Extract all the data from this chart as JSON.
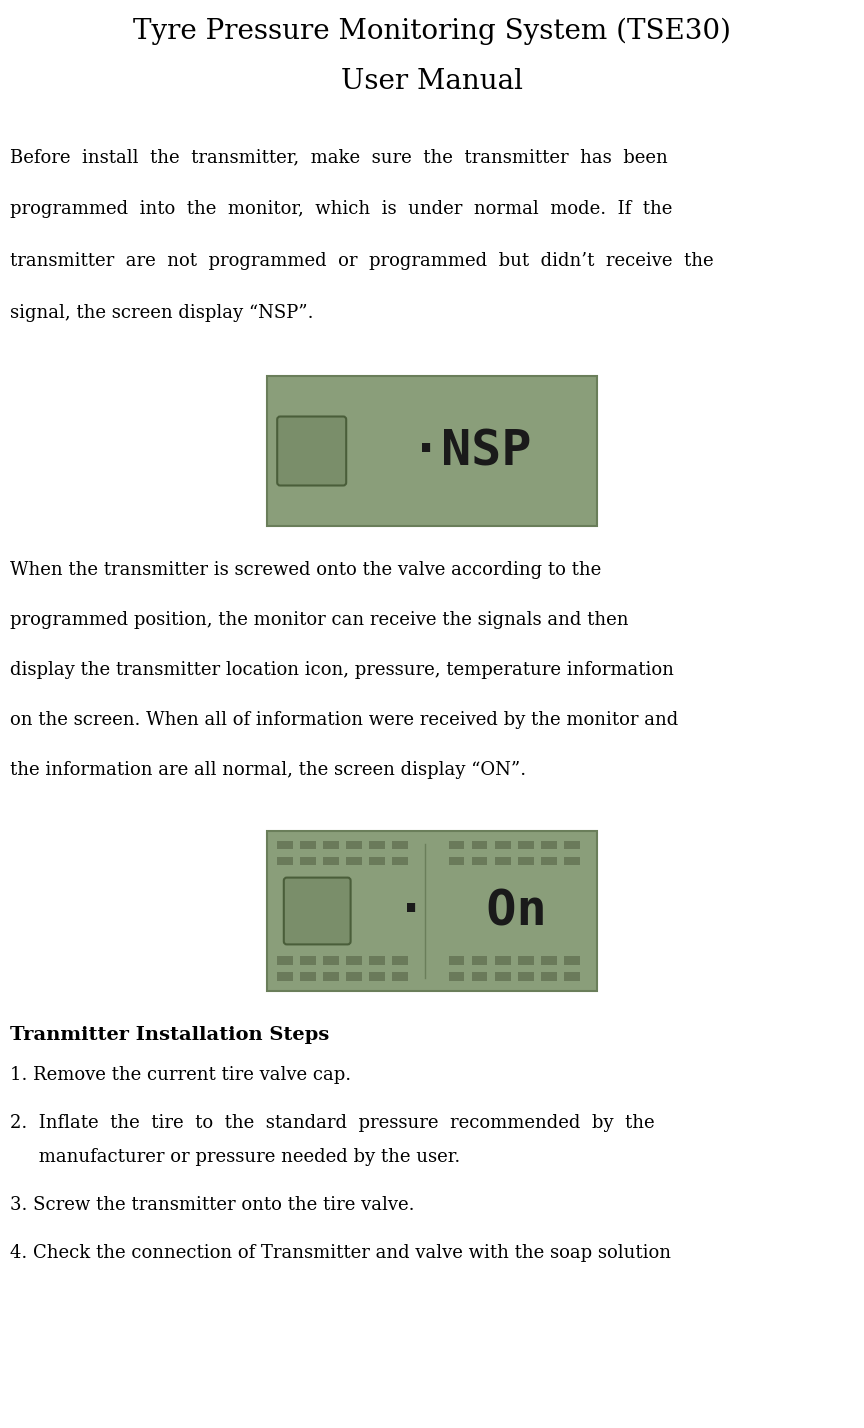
{
  "title_line1": "Tyre Pressure Monitoring System (TSE30)",
  "title_line2": "User Manual",
  "title_fontsize": 20,
  "body_fontsize": 13,
  "background_color": "#ffffff",
  "text_color": "#000000",
  "display_bg_color": "#8a9e7a",
  "display_border_color": "#6a7e5a",
  "display_text_color": "#1a1a1a",
  "display_sq_color": "#7a8e6a",
  "display_sq_border": "#4a5e3a",
  "seg_color": "#6a7a5a",
  "para1_lines": [
    "Before  install  the  transmitter,  make  sure  the  transmitter  has  been",
    "programmed  into  the  monitor,  which  is  under  normal  mode.  If  the",
    "transmitter  are  not  programmed  or  programmed  but  didn’t  receive  the",
    "signal, the screen display “NSP”."
  ],
  "para2_lines": [
    "When the transmitter is screwed onto the valve according to the",
    "programmed position, the monitor can receive the signals and then",
    "display the transmitter location icon, pressure, temperature information",
    "on the screen. When all of information were received by the monitor and",
    "the information are all normal, the screen display “ON”."
  ],
  "section_title": "Tranmitter Installation Steps",
  "step1": "1. Remove the current tire valve cap.",
  "step2a": "2.  Inflate  the  tire  to  the  standard  pressure  recommended  by  the",
  "step2b": "     manufacturer or pressure needed by the user.",
  "step3": "3. Screw the transmitter onto the tire valve.  ",
  "step4": "4. Check the connection of Transmitter and valve with the soap solution",
  "nsp_text": "·NSP",
  "on_text": "·  On"
}
